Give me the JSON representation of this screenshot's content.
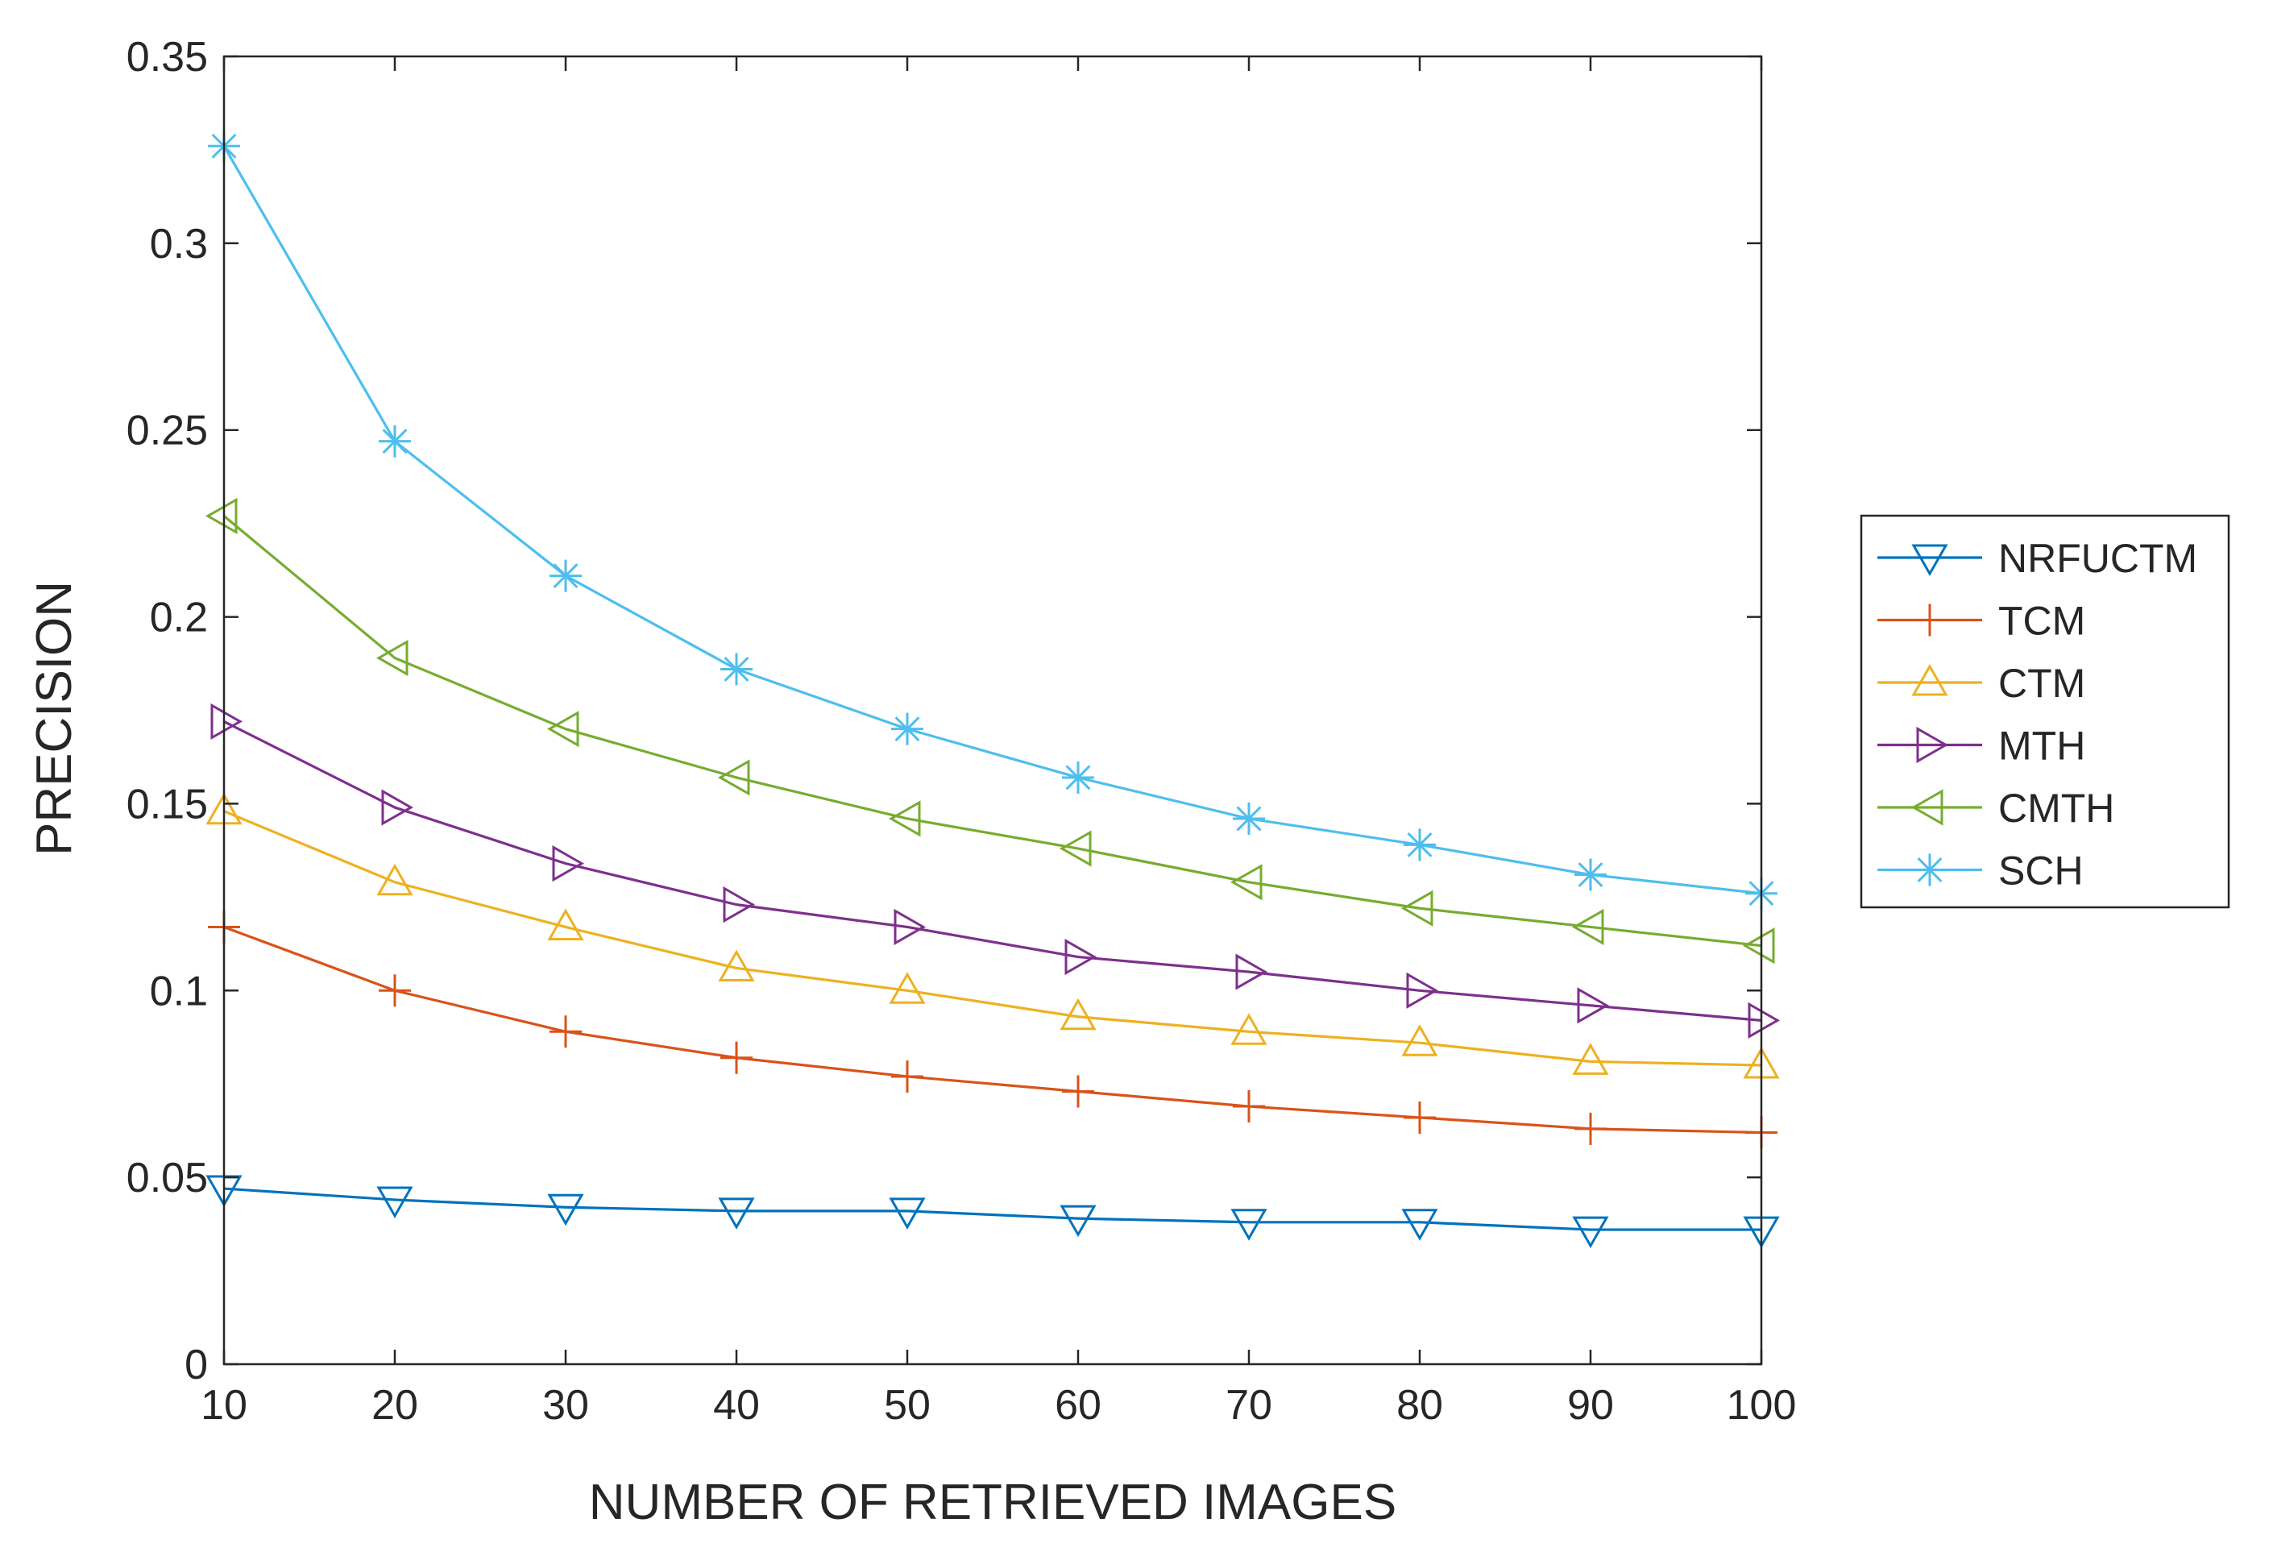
{
  "chart_data": {
    "type": "line",
    "title": "",
    "xlabel": "NUMBER OF RETRIEVED IMAGES",
    "ylabel": "PRECISION",
    "xlim": [
      10,
      100
    ],
    "ylim": [
      0,
      0.35
    ],
    "x": [
      10,
      20,
      30,
      40,
      50,
      60,
      70,
      80,
      90,
      100
    ],
    "xticks": [
      10,
      20,
      30,
      40,
      50,
      60,
      70,
      80,
      90,
      100
    ],
    "xtick_labels": [
      "10",
      "20",
      "30",
      "40",
      "50",
      "60",
      "70",
      "80",
      "90",
      "100"
    ],
    "yticks": [
      0,
      0.05,
      0.1,
      0.15,
      0.2,
      0.25,
      0.3,
      0.35
    ],
    "ytick_labels": [
      "0",
      "0.05",
      "0.1",
      "0.15",
      "0.2",
      "0.25",
      "0.3",
      "0.35"
    ],
    "grid": false,
    "legend_position": "outside-right",
    "series": [
      {
        "name": "NRFUCTM",
        "color": "#0072BD",
        "marker": "triangle-down",
        "values": [
          0.047,
          0.044,
          0.042,
          0.041,
          0.041,
          0.039,
          0.038,
          0.038,
          0.036,
          0.036
        ]
      },
      {
        "name": "TCM",
        "color": "#D95319",
        "marker": "plus",
        "values": [
          0.117,
          0.1,
          0.089,
          0.082,
          0.077,
          0.073,
          0.069,
          0.066,
          0.063,
          0.062
        ]
      },
      {
        "name": "CTM",
        "color": "#EDB120",
        "marker": "triangle-up",
        "values": [
          0.148,
          0.129,
          0.117,
          0.106,
          0.1,
          0.093,
          0.089,
          0.086,
          0.081,
          0.08
        ]
      },
      {
        "name": "MTH",
        "color": "#7E2F8E",
        "marker": "triangle-right",
        "values": [
          0.172,
          0.149,
          0.134,
          0.123,
          0.117,
          0.109,
          0.105,
          0.1,
          0.096,
          0.092
        ]
      },
      {
        "name": "CMTH",
        "color": "#77AC30",
        "marker": "triangle-left",
        "values": [
          0.227,
          0.189,
          0.17,
          0.157,
          0.146,
          0.138,
          0.129,
          0.122,
          0.117,
          0.112
        ]
      },
      {
        "name": "SCH",
        "color": "#4DBEEE",
        "marker": "asterisk",
        "values": [
          0.326,
          0.247,
          0.211,
          0.186,
          0.17,
          0.157,
          0.146,
          0.139,
          0.131,
          0.126
        ]
      }
    ]
  }
}
